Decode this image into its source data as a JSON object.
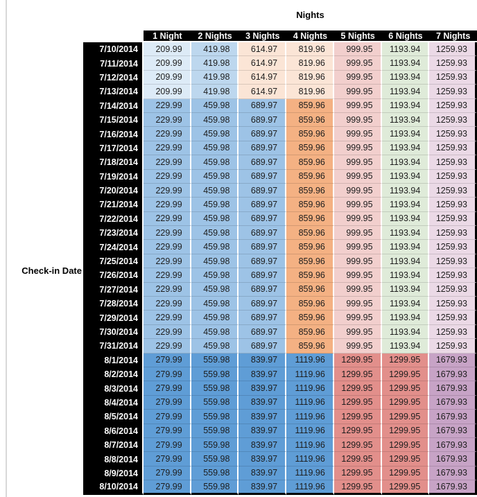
{
  "page": {
    "background": "#ffffff",
    "left_rule_color": "#d8d8d8"
  },
  "table": {
    "title": "Nights",
    "row_axis_label": "Check-in Date",
    "columns": [
      "1 Night",
      "2 Nights",
      "3 Nights",
      "4 Nights",
      "5 Nights",
      "6 Nights",
      "7 Nights"
    ],
    "header_bg": "#000000",
    "header_text_color": "#ffffff",
    "value_text_color": "#1d1d1d",
    "bands": {
      "A": {
        "cell_colors": [
          "#DDEBF7",
          "#BDD7EE",
          "#FBE5D6",
          "#FBE5D6",
          "#F2CFCD",
          "#DFEBD9",
          "#EBD9E6"
        ]
      },
      "B": {
        "cell_colors": [
          "#9DC3E6",
          "#9DC3E6",
          "#9DC3E6",
          "#F4B183",
          "#F2CFCD",
          "#DFEBD9",
          "#EBD9E6"
        ]
      },
      "C": {
        "cell_colors": [
          "#5F9DD6",
          "#5F9DD6",
          "#5F9DD6",
          "#5F9DD6",
          "#E28F8B",
          "#E28F8B",
          "#C7A3C6"
        ]
      }
    },
    "rows": [
      {
        "date": "7/10/2014",
        "band": "A",
        "values": [
          "209.99",
          "419.98",
          "614.97",
          "819.96",
          "999.95",
          "1193.94",
          "1259.93"
        ]
      },
      {
        "date": "7/11/2014",
        "band": "A",
        "values": [
          "209.99",
          "419.98",
          "614.97",
          "819.96",
          "999.95",
          "1193.94",
          "1259.93"
        ]
      },
      {
        "date": "7/12/2014",
        "band": "A",
        "values": [
          "209.99",
          "419.98",
          "614.97",
          "819.96",
          "999.95",
          "1193.94",
          "1259.93"
        ]
      },
      {
        "date": "7/13/2014",
        "band": "A",
        "values": [
          "209.99",
          "419.98",
          "614.97",
          "819.96",
          "999.95",
          "1193.94",
          "1259.93"
        ]
      },
      {
        "date": "7/14/2014",
        "band": "B",
        "values": [
          "229.99",
          "459.98",
          "689.97",
          "859.96",
          "999.95",
          "1193.94",
          "1259.93"
        ]
      },
      {
        "date": "7/15/2014",
        "band": "B",
        "values": [
          "229.99",
          "459.98",
          "689.97",
          "859.96",
          "999.95",
          "1193.94",
          "1259.93"
        ]
      },
      {
        "date": "7/16/2014",
        "band": "B",
        "values": [
          "229.99",
          "459.98",
          "689.97",
          "859.96",
          "999.95",
          "1193.94",
          "1259.93"
        ]
      },
      {
        "date": "7/17/2014",
        "band": "B",
        "values": [
          "229.99",
          "459.98",
          "689.97",
          "859.96",
          "999.95",
          "1193.94",
          "1259.93"
        ]
      },
      {
        "date": "7/18/2014",
        "band": "B",
        "values": [
          "229.99",
          "459.98",
          "689.97",
          "859.96",
          "999.95",
          "1193.94",
          "1259.93"
        ]
      },
      {
        "date": "7/19/2014",
        "band": "B",
        "values": [
          "229.99",
          "459.98",
          "689.97",
          "859.96",
          "999.95",
          "1193.94",
          "1259.93"
        ]
      },
      {
        "date": "7/20/2014",
        "band": "B",
        "values": [
          "229.99",
          "459.98",
          "689.97",
          "859.96",
          "999.95",
          "1193.94",
          "1259.93"
        ]
      },
      {
        "date": "7/21/2014",
        "band": "B",
        "values": [
          "229.99",
          "459.98",
          "689.97",
          "859.96",
          "999.95",
          "1193.94",
          "1259.93"
        ]
      },
      {
        "date": "7/22/2014",
        "band": "B",
        "values": [
          "229.99",
          "459.98",
          "689.97",
          "859.96",
          "999.95",
          "1193.94",
          "1259.93"
        ]
      },
      {
        "date": "7/23/2014",
        "band": "B",
        "values": [
          "229.99",
          "459.98",
          "689.97",
          "859.96",
          "999.95",
          "1193.94",
          "1259.93"
        ]
      },
      {
        "date": "7/24/2014",
        "band": "B",
        "values": [
          "229.99",
          "459.98",
          "689.97",
          "859.96",
          "999.95",
          "1193.94",
          "1259.93"
        ]
      },
      {
        "date": "7/25/2014",
        "band": "B",
        "values": [
          "229.99",
          "459.98",
          "689.97",
          "859.96",
          "999.95",
          "1193.94",
          "1259.93"
        ]
      },
      {
        "date": "7/26/2014",
        "band": "B",
        "values": [
          "229.99",
          "459.98",
          "689.97",
          "859.96",
          "999.95",
          "1193.94",
          "1259.93"
        ]
      },
      {
        "date": "7/27/2014",
        "band": "B",
        "values": [
          "229.99",
          "459.98",
          "689.97",
          "859.96",
          "999.95",
          "1193.94",
          "1259.93"
        ]
      },
      {
        "date": "7/28/2014",
        "band": "B",
        "values": [
          "229.99",
          "459.98",
          "689.97",
          "859.96",
          "999.95",
          "1193.94",
          "1259.93"
        ]
      },
      {
        "date": "7/29/2014",
        "band": "B",
        "values": [
          "229.99",
          "459.98",
          "689.97",
          "859.96",
          "999.95",
          "1193.94",
          "1259.93"
        ]
      },
      {
        "date": "7/30/2014",
        "band": "B",
        "values": [
          "229.99",
          "459.98",
          "689.97",
          "859.96",
          "999.95",
          "1193.94",
          "1259.93"
        ]
      },
      {
        "date": "7/31/2014",
        "band": "B",
        "values": [
          "229.99",
          "459.98",
          "689.97",
          "859.96",
          "999.95",
          "1193.94",
          "1259.93"
        ]
      },
      {
        "date": "8/1/2014",
        "band": "C",
        "values": [
          "279.99",
          "559.98",
          "839.97",
          "1119.96",
          "1299.95",
          "1299.95",
          "1679.93"
        ]
      },
      {
        "date": "8/2/2014",
        "band": "C",
        "values": [
          "279.99",
          "559.98",
          "839.97",
          "1119.96",
          "1299.95",
          "1299.95",
          "1679.93"
        ]
      },
      {
        "date": "8/3/2014",
        "band": "C",
        "values": [
          "279.99",
          "559.98",
          "839.97",
          "1119.96",
          "1299.95",
          "1299.95",
          "1679.93"
        ]
      },
      {
        "date": "8/4/2014",
        "band": "C",
        "values": [
          "279.99",
          "559.98",
          "839.97",
          "1119.96",
          "1299.95",
          "1299.95",
          "1679.93"
        ]
      },
      {
        "date": "8/5/2014",
        "band": "C",
        "values": [
          "279.99",
          "559.98",
          "839.97",
          "1119.96",
          "1299.95",
          "1299.95",
          "1679.93"
        ]
      },
      {
        "date": "8/6/2014",
        "band": "C",
        "values": [
          "279.99",
          "559.98",
          "839.97",
          "1119.96",
          "1299.95",
          "1299.95",
          "1679.93"
        ]
      },
      {
        "date": "8/7/2014",
        "band": "C",
        "values": [
          "279.99",
          "559.98",
          "839.97",
          "1119.96",
          "1299.95",
          "1299.95",
          "1679.93"
        ]
      },
      {
        "date": "8/8/2014",
        "band": "C",
        "values": [
          "279.99",
          "559.98",
          "839.97",
          "1119.96",
          "1299.95",
          "1299.95",
          "1679.93"
        ]
      },
      {
        "date": "8/9/2014",
        "band": "C",
        "values": [
          "279.99",
          "559.98",
          "839.97",
          "1119.96",
          "1299.95",
          "1299.95",
          "1679.93"
        ]
      },
      {
        "date": "8/10/2014",
        "band": "C",
        "values": [
          "279.99",
          "559.98",
          "839.97",
          "1119.96",
          "1299.95",
          "1299.95",
          "1679.93"
        ]
      }
    ]
  }
}
